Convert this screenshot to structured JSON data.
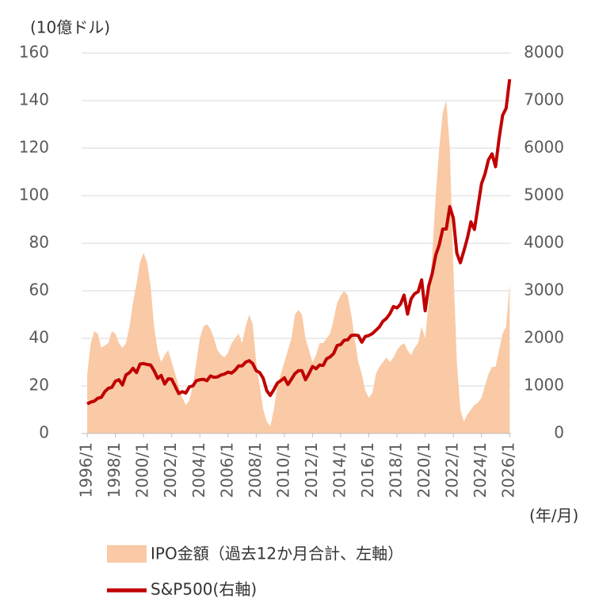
{
  "chart_data": {
    "type": "area-line",
    "y_label": "(10億ドル)",
    "x_label": "(年/月)",
    "xlim": [
      1995.6,
      2026.1
    ],
    "xticks": [
      {
        "value": 1996,
        "label": "1996/1"
      },
      {
        "value": 1998,
        "label": "1998/1"
      },
      {
        "value": 2000,
        "label": "2000/1"
      },
      {
        "value": 2002,
        "label": "2002/1"
      },
      {
        "value": 2004,
        "label": "2004/1"
      },
      {
        "value": 2006,
        "label": "2006/1"
      },
      {
        "value": 2008,
        "label": "2008/1"
      },
      {
        "value": 2010,
        "label": "2010/1"
      },
      {
        "value": 2012,
        "label": "2012/1"
      },
      {
        "value": 2014,
        "label": "2014/1"
      },
      {
        "value": 2016,
        "label": "2016/1"
      },
      {
        "value": 2018,
        "label": "2018/1"
      },
      {
        "value": 2020,
        "label": "2020/1"
      },
      {
        "value": 2022,
        "label": "2022/1"
      },
      {
        "value": 2024,
        "label": "2024/1"
      },
      {
        "value": 2026,
        "label": "2026/1"
      }
    ],
    "ylim": [
      0,
      160
    ],
    "yticks": [
      0,
      20,
      40,
      60,
      80,
      100,
      120,
      140,
      160
    ],
    "y2lim": [
      0,
      8000
    ],
    "y2ticks": [
      0,
      1000,
      2000,
      3000,
      4000,
      5000,
      6000,
      7000,
      8000
    ],
    "grid": true,
    "x": [
      1996,
      1996.25,
      1996.5,
      1996.75,
      1997,
      1997.25,
      1997.5,
      1997.75,
      1998,
      1998.25,
      1998.5,
      1998.75,
      1999,
      1999.25,
      1999.5,
      1999.75,
      2000,
      2000.25,
      2000.5,
      2000.75,
      2001,
      2001.25,
      2001.5,
      2001.75,
      2002,
      2002.25,
      2002.5,
      2002.75,
      2003,
      2003.25,
      2003.5,
      2003.75,
      2004,
      2004.25,
      2004.5,
      2004.75,
      2005,
      2005.25,
      2005.5,
      2005.75,
      2006,
      2006.25,
      2006.5,
      2006.75,
      2007,
      2007.25,
      2007.5,
      2007.75,
      2008,
      2008.25,
      2008.5,
      2008.75,
      2009,
      2009.25,
      2009.5,
      2009.75,
      2010,
      2010.25,
      2010.5,
      2010.75,
      2011,
      2011.25,
      2011.5,
      2011.75,
      2012,
      2012.25,
      2012.5,
      2012.75,
      2013,
      2013.25,
      2013.5,
      2013.75,
      2014,
      2014.25,
      2014.5,
      2014.75,
      2015,
      2015.25,
      2015.5,
      2015.75,
      2016,
      2016.25,
      2016.5,
      2016.75,
      2017,
      2017.25,
      2017.5,
      2017.75,
      2018,
      2018.25,
      2018.5,
      2018.75,
      2019,
      2019.25,
      2019.5,
      2019.75,
      2020,
      2020.25,
      2020.5,
      2020.75,
      2021,
      2021.25,
      2021.5,
      2021.75,
      2022,
      2022.25,
      2022.5,
      2022.75,
      2023,
      2023.25,
      2023.5,
      2023.75,
      2024,
      2024.25,
      2024.5,
      2024.75,
      2025,
      2025.25,
      2025.5,
      2025.75,
      2026
    ],
    "series": [
      {
        "name": "IPO金額（過去12か月合計、左軸）",
        "color": "#f9caa5",
        "kind": "area",
        "values": [
          25,
          38,
          43,
          42,
          36,
          37,
          38,
          43,
          42,
          38,
          36,
          38,
          45,
          55,
          63,
          72,
          76,
          72,
          62,
          45,
          35,
          30,
          33,
          35,
          30,
          25,
          20,
          15,
          12,
          14,
          20,
          30,
          40,
          45,
          46,
          44,
          40,
          35,
          33,
          32,
          34,
          38,
          40,
          42,
          38,
          45,
          50,
          46,
          30,
          20,
          10,
          5,
          3,
          10,
          20,
          25,
          30,
          35,
          40,
          50,
          52,
          50,
          40,
          35,
          30,
          33,
          38,
          38,
          40,
          42,
          48,
          55,
          58,
          60,
          58,
          50,
          40,
          30,
          25,
          18,
          15,
          17,
          25,
          28,
          30,
          32,
          30,
          32,
          35,
          37,
          38,
          35,
          33,
          36,
          38,
          45,
          40,
          55,
          75,
          100,
          120,
          135,
          140,
          120,
          70,
          30,
          10,
          5,
          8,
          10,
          12,
          13,
          15,
          20,
          25,
          28,
          28,
          35,
          42,
          45,
          63
        ]
      },
      {
        "name": "S&P500(右軸)",
        "color": "#c00000",
        "kind": "line",
        "axis": "y2",
        "values": [
          620,
          660,
          680,
          740,
          760,
          880,
          950,
          970,
          1100,
          1130,
          1020,
          1230,
          1280,
          1370,
          1280,
          1460,
          1470,
          1450,
          1440,
          1320,
          1160,
          1220,
          1040,
          1150,
          1140,
          990,
          840,
          880,
          850,
          980,
          1000,
          1110,
          1130,
          1140,
          1110,
          1210,
          1180,
          1190,
          1230,
          1250,
          1290,
          1270,
          1330,
          1420,
          1420,
          1500,
          1530,
          1470,
          1320,
          1280,
          1160,
          900,
          800,
          920,
          1060,
          1110,
          1170,
          1030,
          1140,
          1260,
          1320,
          1320,
          1130,
          1260,
          1410,
          1360,
          1440,
          1430,
          1570,
          1610,
          1680,
          1850,
          1870,
          1960,
          1970,
          2060,
          2070,
          2060,
          1920,
          2040,
          2060,
          2100,
          2170,
          2240,
          2360,
          2420,
          2520,
          2670,
          2640,
          2720,
          2910,
          2510,
          2830,
          2940,
          2980,
          3230,
          2580,
          3100,
          3360,
          3750,
          3970,
          4300,
          4300,
          4770,
          4530,
          3790,
          3590,
          3840,
          4110,
          4450,
          4290,
          4770,
          5250,
          5460,
          5760,
          5880,
          5610,
          6200,
          6690,
          6840,
          7450
        ]
      }
    ]
  }
}
